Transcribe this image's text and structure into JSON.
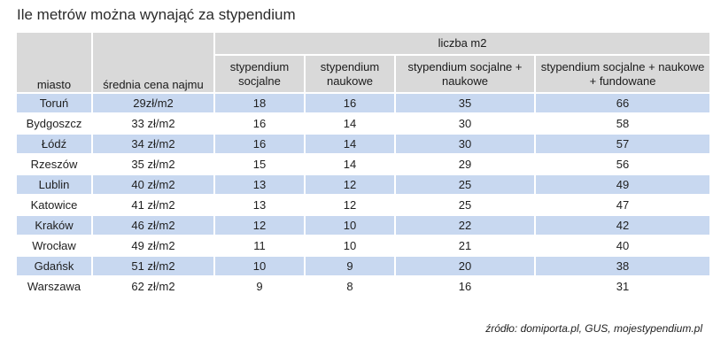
{
  "title": "Ile metrów można wynająć za stypendium",
  "header": {
    "city": "miasto",
    "price": "średnia cena najmu",
    "group": "liczba m2",
    "sub": [
      "stypendium socjalne",
      "stypendium naukowe",
      "stypendium socjalne + naukowe",
      "stypendium socjalne + naukowe + fundowane"
    ]
  },
  "rows": [
    {
      "city": "Toruń",
      "price": "29zł/m2",
      "v": [
        "18",
        "16",
        "35",
        "66"
      ]
    },
    {
      "city": "Bydgoszcz",
      "price": "33 zł/m2",
      "v": [
        "16",
        "14",
        "30",
        "58"
      ]
    },
    {
      "city": "Łódź",
      "price": "34 zł/m2",
      "v": [
        "16",
        "14",
        "30",
        "57"
      ]
    },
    {
      "city": "Rzeszów",
      "price": "35 zł/m2",
      "v": [
        "15",
        "14",
        "29",
        "56"
      ]
    },
    {
      "city": "Lublin",
      "price": "40 zł/m2",
      "v": [
        "13",
        "12",
        "25",
        "49"
      ]
    },
    {
      "city": "Katowice",
      "price": "41 zł/m2",
      "v": [
        "13",
        "12",
        "25",
        "47"
      ]
    },
    {
      "city": "Kraków",
      "price": "46 zł/m2",
      "v": [
        "12",
        "10",
        "22",
        "42"
      ]
    },
    {
      "city": "Wrocław",
      "price": "49 zł/m2",
      "v": [
        "11",
        "10",
        "21",
        "40"
      ]
    },
    {
      "city": "Gdańsk",
      "price": "51 zł/m2",
      "v": [
        "10",
        "9",
        "20",
        "38"
      ]
    },
    {
      "city": "Warszawa",
      "price": "62 zł/m2",
      "v": [
        "9",
        "8",
        "16",
        "31"
      ]
    }
  ],
  "source": "źródło: domiporta.pl, GUS, mojestypendium.pl",
  "colors": {
    "header_bg": "#d9d9d9",
    "row_shade": "#c8d8f0"
  },
  "chart_data": {
    "type": "table",
    "title": "Ile metrów można wynająć za stypendium",
    "columns": [
      "miasto",
      "średnia cena najmu",
      "stypendium socjalne",
      "stypendium naukowe",
      "stypendium socjalne + naukowe",
      "stypendium socjalne + naukowe + fundowane"
    ],
    "column_group": {
      "label": "liczba m2",
      "spans": [
        2,
        3,
        4,
        5
      ]
    },
    "rows": [
      [
        "Toruń",
        "29zł/m2",
        18,
        16,
        35,
        66
      ],
      [
        "Bydgoszcz",
        "33 zł/m2",
        16,
        14,
        30,
        58
      ],
      [
        "Łódź",
        "34 zł/m2",
        16,
        14,
        30,
        57
      ],
      [
        "Rzeszów",
        "35 zł/m2",
        15,
        14,
        29,
        56
      ],
      [
        "Lublin",
        "40 zł/m2",
        13,
        12,
        25,
        49
      ],
      [
        "Katowice",
        "41 zł/m2",
        13,
        12,
        25,
        47
      ],
      [
        "Kraków",
        "46 zł/m2",
        12,
        10,
        22,
        42
      ],
      [
        "Wrocław",
        "49 zł/m2",
        11,
        10,
        21,
        40
      ],
      [
        "Gdańsk",
        "51 zł/m2",
        10,
        9,
        20,
        38
      ],
      [
        "Warszawa",
        "62 zł/m2",
        9,
        8,
        16,
        31
      ]
    ]
  }
}
